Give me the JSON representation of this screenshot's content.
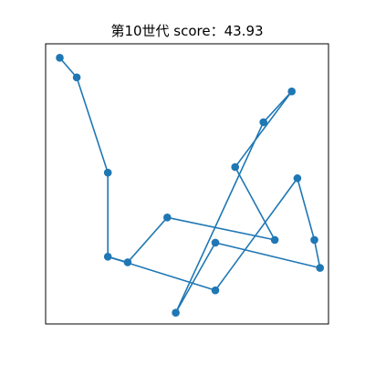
{
  "chart_data": {
    "type": "line",
    "title": "第10世代 score：43.93",
    "xlabel": "",
    "ylabel": "",
    "grid": false,
    "axes_ticks": false,
    "series_color": "#1f77b4",
    "points": [
      [
        0.05,
        0.95
      ],
      [
        0.11,
        0.88
      ],
      [
        0.22,
        0.54
      ],
      [
        0.22,
        0.24
      ],
      [
        0.29,
        0.22
      ],
      [
        0.43,
        0.38
      ],
      [
        0.81,
        0.3
      ],
      [
        0.67,
        0.56
      ],
      [
        0.87,
        0.83
      ],
      [
        0.77,
        0.72
      ],
      [
        0.46,
        0.04
      ],
      [
        0.6,
        0.12
      ],
      [
        0.89,
        0.52
      ],
      [
        0.95,
        0.3
      ],
      [
        0.97,
        0.2
      ],
      [
        0.6,
        0.29
      ]
    ],
    "path_order": [
      0,
      1,
      2,
      3,
      4,
      5,
      6,
      7,
      8,
      9,
      10,
      15,
      14,
      13,
      12,
      11,
      3
    ]
  }
}
